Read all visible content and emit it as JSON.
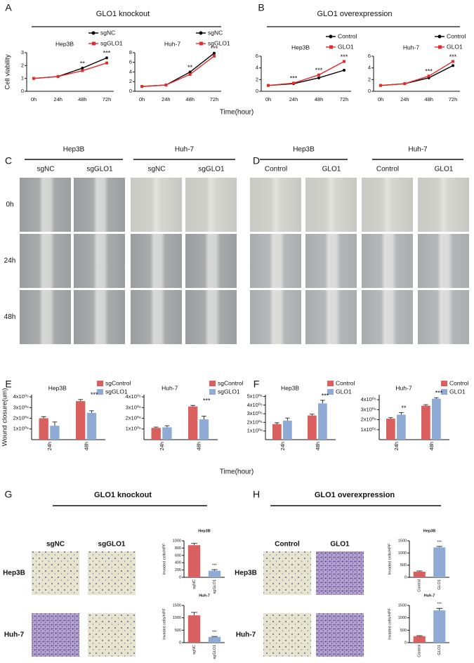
{
  "panels": {
    "letters": [
      "A",
      "B",
      "C",
      "D",
      "E",
      "F",
      "G",
      "H"
    ],
    "A_title": "GLO1 knockout",
    "B_title": "GLO1 overexpression",
    "line_x_label": "Time(hour)",
    "bar_x_label": "Time(hour)",
    "C": {
      "groups": [
        "Hep3B",
        "Huh-7"
      ],
      "columns": [
        "sgNC",
        "sgGLO1",
        "sgNC",
        "sgGLO1"
      ],
      "rows": [
        "0h",
        "24h",
        "48h"
      ]
    },
    "D": {
      "groups": [
        "Hep3B",
        "Huh-7"
      ],
      "columns": [
        "Control",
        "GLO1",
        "Control",
        "GLO1"
      ]
    },
    "G": {
      "title": "GLO1 knockout",
      "columns": [
        "sgNC",
        "sgGLO1"
      ],
      "rows": [
        "Hep3B",
        "Huh-7"
      ]
    },
    "H": {
      "title": "GLO1 overexpression",
      "columns": [
        "Control",
        "GLO1"
      ],
      "rows": [
        "Hep3B",
        "Huh-7"
      ]
    }
  },
  "chart_data": [
    {
      "type": "line",
      "title": "Hep3B",
      "y_label": "Cell viability",
      "categories": [
        "0h",
        "24h",
        "48h",
        "72h"
      ],
      "series": [
        {
          "name": "sgNC",
          "color": "#000000",
          "marker": "circle",
          "values": [
            1,
            1.15,
            1.8,
            2.6
          ]
        },
        {
          "name": "sgGLO1",
          "color": "#e8292a",
          "marker": "square",
          "values": [
            1,
            1.15,
            1.6,
            2.2
          ]
        }
      ],
      "ylim": [
        0,
        3
      ],
      "yticks": [
        0,
        1,
        2,
        3
      ],
      "legend": "top-right",
      "annotations": [
        {
          "x": "48h",
          "text": "**"
        },
        {
          "x": "72h",
          "text": "***"
        }
      ]
    },
    {
      "type": "line",
      "title": "Huh-7",
      "categories": [
        "0h",
        "24h",
        "48h",
        "72h"
      ],
      "series": [
        {
          "name": "sgNC",
          "color": "#000000",
          "marker": "circle",
          "values": [
            1,
            1.3,
            4.0,
            7.9
          ]
        },
        {
          "name": "sgGLO1",
          "color": "#e8292a",
          "marker": "square",
          "values": [
            1,
            1.3,
            3.5,
            7.3
          ]
        }
      ],
      "ylim": [
        0,
        8
      ],
      "yticks": [
        0,
        2,
        4,
        6,
        8
      ],
      "legend": "top-right",
      "annotations": [
        {
          "x": "48h",
          "text": "**"
        },
        {
          "x": "72h",
          "text": "***"
        }
      ]
    },
    {
      "type": "line",
      "title": "Hep3B",
      "categories": [
        "0h",
        "24h",
        "48h",
        "72h"
      ],
      "series": [
        {
          "name": "Control",
          "color": "#000000",
          "marker": "circle",
          "values": [
            1,
            1.3,
            2.3,
            3.6
          ]
        },
        {
          "name": "GLO1",
          "color": "#e8292a",
          "marker": "square",
          "values": [
            1,
            1.4,
            2.8,
            5.1
          ]
        }
      ],
      "ylim": [
        0,
        6
      ],
      "yticks": [
        0,
        2,
        4,
        6
      ],
      "legend": "top-right",
      "annotations": [
        {
          "x": "24h",
          "text": "***"
        },
        {
          "x": "48h",
          "text": "***"
        },
        {
          "x": "72h",
          "text": "***"
        }
      ]
    },
    {
      "type": "line",
      "title": "Huh-7",
      "categories": [
        "0h",
        "24h",
        "48h",
        "72h"
      ],
      "series": [
        {
          "name": "Control",
          "color": "#000000",
          "marker": "circle",
          "values": [
            1,
            1.3,
            2.3,
            4.4
          ]
        },
        {
          "name": "GLO1",
          "color": "#e8292a",
          "marker": "square",
          "values": [
            1,
            1.3,
            2.6,
            5.1
          ]
        }
      ],
      "ylim": [
        0,
        6
      ],
      "yticks": [
        0,
        2,
        4,
        6
      ],
      "legend": "top-right",
      "annotations": [
        {
          "x": "48h",
          "text": "***"
        },
        {
          "x": "72h",
          "text": "***"
        }
      ]
    },
    {
      "type": "bar",
      "title": "Hep3B",
      "y_label": "Wound closure(um)",
      "categories": [
        "24h",
        "48h"
      ],
      "series": [
        {
          "name": "sgControl",
          "color": "#d9605e",
          "values": [
            2000000,
            3600000
          ],
          "errors": [
            150000,
            150000
          ]
        },
        {
          "name": "sgGLO1",
          "color": "#8faad4",
          "values": [
            1300000,
            2500000
          ],
          "errors": [
            350000,
            200000
          ]
        }
      ],
      "ylim": [
        0,
        4200000
      ],
      "yticks": [
        {
          "value": 1000000,
          "label": "1x10⁰⁶"
        },
        {
          "value": 2000000,
          "label": "2x10⁰⁶"
        },
        {
          "value": 3000000,
          "label": "3x10⁰⁶"
        },
        {
          "value": 4000000,
          "label": "4x10⁰⁶"
        }
      ],
      "legend": "top-right",
      "annotations": [
        {
          "x": "48h",
          "text": "***"
        }
      ]
    },
    {
      "type": "bar",
      "title": "Huh-7",
      "categories": [
        "24h",
        "48h"
      ],
      "series": [
        {
          "name": "sgControl",
          "color": "#d9605e",
          "values": [
            1100000,
            3100000
          ],
          "errors": [
            80000,
            100000
          ]
        },
        {
          "name": "sgGLO1",
          "color": "#8faad4",
          "values": [
            1150000,
            1900000
          ],
          "errors": [
            150000,
            300000
          ]
        }
      ],
      "ylim": [
        0,
        4200000
      ],
      "yticks": [
        {
          "value": 1000000,
          "label": "1x10⁰⁶"
        },
        {
          "value": 2000000,
          "label": "2x10⁰⁶"
        },
        {
          "value": 3000000,
          "label": "3x10⁰⁶"
        },
        {
          "value": 4000000,
          "label": "4x10⁰⁶"
        }
      ],
      "legend": "top-right",
      "annotations": [
        {
          "x": "48h",
          "text": "***"
        }
      ]
    },
    {
      "type": "bar",
      "title": "Hep3B",
      "categories": [
        "24h",
        "48h"
      ],
      "series": [
        {
          "name": "Control",
          "color": "#d9605e",
          "values": [
            1800000,
            2800000
          ],
          "errors": [
            150000,
            150000
          ]
        },
        {
          "name": "GLO1",
          "color": "#8faad4",
          "values": [
            2200000,
            4200000
          ],
          "errors": [
            300000,
            350000
          ]
        }
      ],
      "ylim": [
        0,
        5200000
      ],
      "yticks": [
        {
          "value": 1000000,
          "label": "1x10⁰⁶"
        },
        {
          "value": 2000000,
          "label": "2x10⁰⁶"
        },
        {
          "value": 3000000,
          "label": "3x10⁰⁶"
        },
        {
          "value": 4000000,
          "label": "4x10⁰⁶"
        },
        {
          "value": 5000000,
          "label": "5x10⁰⁶"
        }
      ],
      "legend": "top-right",
      "annotations": [
        {
          "x": "48h",
          "text": "***"
        }
      ]
    },
    {
      "type": "bar",
      "title": "Huh-7",
      "categories": [
        "24h",
        "48h"
      ],
      "series": [
        {
          "name": "Control",
          "color": "#d9605e",
          "values": [
            2100000,
            3400000
          ],
          "errors": [
            100000,
            100000
          ]
        },
        {
          "name": "GLO1",
          "color": "#8faad4",
          "values": [
            2500000,
            4100000
          ],
          "errors": [
            200000,
            100000
          ]
        }
      ],
      "ylim": [
        0,
        4500000
      ],
      "yticks": [
        {
          "value": 1000000,
          "label": "1x10⁰⁶"
        },
        {
          "value": 2000000,
          "label": "2x10⁰⁶"
        },
        {
          "value": 3000000,
          "label": "3x10⁰⁶"
        },
        {
          "value": 4000000,
          "label": "4x10⁰⁶"
        }
      ],
      "legend": "top-right",
      "annotations": [
        {
          "x": "24h",
          "text": "**"
        },
        {
          "x": "48h",
          "text": "***"
        }
      ]
    },
    {
      "type": "bar",
      "title": "Hep3B",
      "y_label": "Invaded cells/HPF",
      "categories": [
        "sgNC",
        "sgGLO1"
      ],
      "values": [
        880,
        180
      ],
      "errors": [
        50,
        30
      ],
      "colors": [
        "#d9605e",
        "#8faad4"
      ],
      "ylim": [
        0,
        1000
      ],
      "yticks": [
        0,
        200,
        400,
        600,
        800,
        1000
      ],
      "annotations": [
        {
          "x": "sgGLO1",
          "text": "***"
        }
      ]
    },
    {
      "type": "bar",
      "title": "Huh-7",
      "y_label": "Invaded cells/HPF",
      "categories": [
        "sgNC",
        "sgGLO1"
      ],
      "values": [
        1100,
        230
      ],
      "errors": [
        120,
        20
      ],
      "colors": [
        "#d9605e",
        "#8faad4"
      ],
      "ylim": [
        0,
        1500
      ],
      "yticks": [
        0,
        500,
        1000,
        1500
      ],
      "annotations": [
        {
          "x": "sgGLO1",
          "text": "***"
        }
      ]
    },
    {
      "type": "bar",
      "title": "Hep3B",
      "y_label": "Invaded cells/HPF",
      "categories": [
        "Control",
        "GLO1"
      ],
      "values": [
        230,
        1230
      ],
      "errors": [
        30,
        40
      ],
      "colors": [
        "#d9605e",
        "#8faad4"
      ],
      "ylim": [
        0,
        1500
      ],
      "yticks": [
        0,
        500,
        1000,
        1500
      ],
      "annotations": [
        {
          "x": "GLO1",
          "text": "***"
        }
      ]
    },
    {
      "type": "bar",
      "title": "Huh-7",
      "y_label": "Invaded cells/HPF",
      "categories": [
        "Control",
        "GLO1"
      ],
      "values": [
        260,
        1300
      ],
      "errors": [
        20,
        80
      ],
      "colors": [
        "#d9605e",
        "#8faad4"
      ],
      "ylim": [
        0,
        1500
      ],
      "yticks": [
        0,
        500,
        1000,
        1500
      ],
      "annotations": [
        {
          "x": "GLO1",
          "text": "***"
        }
      ]
    }
  ]
}
